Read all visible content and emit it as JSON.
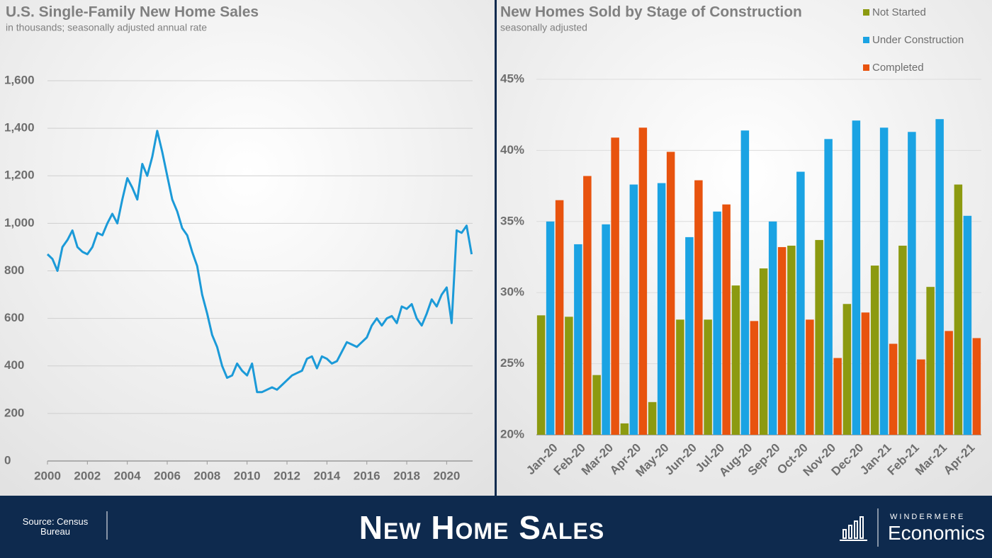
{
  "chart_data": [
    {
      "type": "line",
      "title": "U.S. Single-Family New Home Sales",
      "subtitle": "in thousands; seasonally adjusted annual rate",
      "color": "#1b9ad8",
      "x": [
        2000,
        2000.25,
        2000.5,
        2000.75,
        2001,
        2001.25,
        2001.5,
        2001.75,
        2002,
        2002.25,
        2002.5,
        2002.75,
        2003,
        2003.25,
        2003.5,
        2003.75,
        2004,
        2004.25,
        2004.5,
        2004.75,
        2005,
        2005.25,
        2005.5,
        2005.75,
        2006,
        2006.25,
        2006.5,
        2006.75,
        2007,
        2007.25,
        2007.5,
        2007.75,
        2008,
        2008.25,
        2008.5,
        2008.75,
        2009,
        2009.25,
        2009.5,
        2009.75,
        2010,
        2010.25,
        2010.5,
        2010.75,
        2011,
        2011.25,
        2011.5,
        2011.75,
        2012,
        2012.25,
        2012.5,
        2012.75,
        2013,
        2013.25,
        2013.5,
        2013.75,
        2014,
        2014.25,
        2014.5,
        2014.75,
        2015,
        2015.25,
        2015.5,
        2015.75,
        2016,
        2016.25,
        2016.5,
        2016.75,
        2017,
        2017.25,
        2017.5,
        2017.75,
        2018,
        2018.25,
        2018.5,
        2018.75,
        2019,
        2019.25,
        2019.5,
        2019.75,
        2020,
        2020.25,
        2020.5,
        2020.75,
        2021,
        2021.25
      ],
      "values": [
        870,
        850,
        800,
        900,
        930,
        970,
        900,
        880,
        870,
        900,
        960,
        950,
        1000,
        1040,
        1000,
        1100,
        1190,
        1150,
        1100,
        1250,
        1200,
        1280,
        1389,
        1300,
        1200,
        1100,
        1050,
        980,
        950,
        880,
        820,
        700,
        620,
        530,
        480,
        400,
        350,
        360,
        410,
        380,
        360,
        410,
        290,
        290,
        300,
        310,
        300,
        320,
        340,
        360,
        370,
        380,
        430,
        440,
        390,
        440,
        430,
        410,
        420,
        460,
        500,
        490,
        480,
        500,
        520,
        570,
        600,
        570,
        600,
        610,
        580,
        650,
        640,
        660,
        600,
        570,
        620,
        680,
        650,
        700,
        730,
        580,
        970,
        960,
        990,
        870
      ],
      "xlim": [
        2000,
        2021.3
      ],
      "xticks": [
        2000,
        2002,
        2004,
        2006,
        2008,
        2010,
        2012,
        2014,
        2016,
        2018,
        2020
      ],
      "ylim": [
        0,
        1600
      ],
      "yticks": [
        0,
        200,
        400,
        600,
        800,
        {
          "value": 1000,
          "label": "1,000"
        },
        {
          "value": 1200,
          "label": "1,200"
        },
        {
          "value": 1400,
          "label": "1,400"
        },
        {
          "value": 1600,
          "label": "1,600"
        }
      ],
      "grid": true
    },
    {
      "type": "bar",
      "title": "New Homes Sold by Stage of Construction",
      "subtitle": "seasonally adjusted",
      "categories": [
        "Jan-20",
        "Feb-20",
        "Mar-20",
        "Apr-20",
        "May-20",
        "Jun-20",
        "Jul-20",
        "Aug-20",
        "Sep-20",
        "Oct-20",
        "Nov-20",
        "Dec-20",
        "Jan-21",
        "Feb-21",
        "Mar-21",
        "Apr-21"
      ],
      "series": [
        {
          "name": "Not Started",
          "color": "#8c9a10",
          "values": [
            28.4,
            28.3,
            24.2,
            20.8,
            22.3,
            28.1,
            28.1,
            30.5,
            31.7,
            33.3,
            33.7,
            29.2,
            31.9,
            33.3,
            30.4,
            37.6
          ]
        },
        {
          "name": "Under Construction",
          "color": "#1ba3e3",
          "values": [
            35.0,
            33.4,
            34.8,
            37.6,
            37.7,
            33.9,
            35.7,
            41.4,
            35.0,
            38.5,
            40.8,
            42.1,
            41.6,
            41.3,
            42.2,
            35.4
          ]
        },
        {
          "name": "Completed",
          "color": "#e8530e",
          "values": [
            36.5,
            38.2,
            40.9,
            41.6,
            39.9,
            37.9,
            36.2,
            28.0,
            33.2,
            28.1,
            25.4,
            28.6,
            26.4,
            25.3,
            27.3,
            26.8
          ]
        }
      ],
      "ylim": [
        20,
        45
      ],
      "yticks": [
        {
          "value": 20,
          "label": "20%"
        },
        {
          "value": 25,
          "label": "25%"
        },
        {
          "value": 30,
          "label": "30%"
        },
        {
          "value": 35,
          "label": "35%"
        },
        {
          "value": 40,
          "label": "40%"
        },
        {
          "value": 45,
          "label": "45%"
        }
      ],
      "grid": true,
      "legend": "top-right"
    }
  ],
  "footer": {
    "source": "Source: Census Bureau",
    "title": "New Home Sales",
    "brand": "WINDERMERE",
    "brand_sub": "Economics"
  }
}
